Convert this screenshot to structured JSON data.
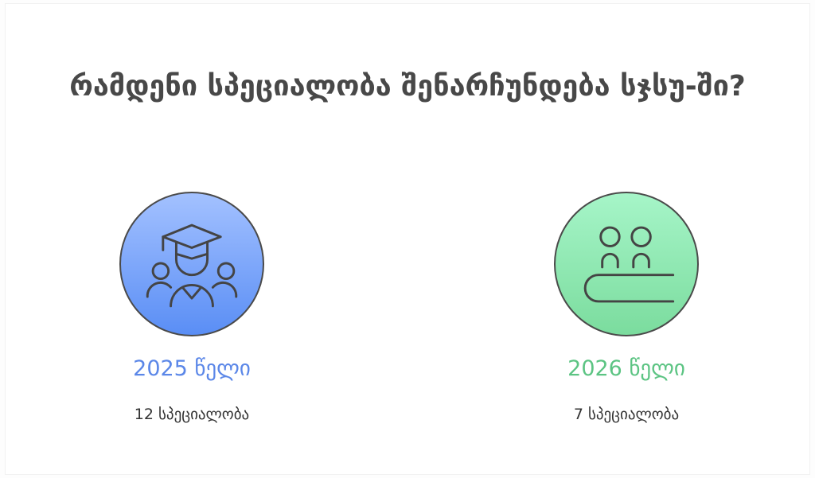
{
  "title": "რამდენი სპეციალობა შენარჩუნდება სჯსუ-ში?",
  "items": [
    {
      "year": "2025 წელი",
      "count": "12 სპეციალობა",
      "color": "#5b87e8",
      "icon": "graduation-group-icon"
    },
    {
      "year": "2026 წელი",
      "count": "7 სპეციალობა",
      "color": "#5cc483",
      "icon": "people-at-table-icon"
    }
  ]
}
